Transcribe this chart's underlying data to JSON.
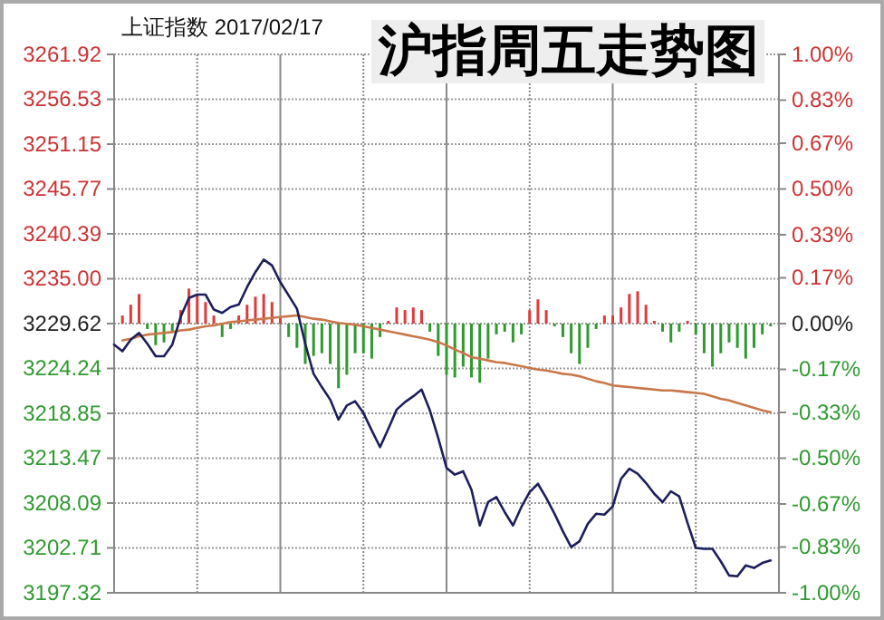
{
  "chart_data": {
    "type": "line",
    "title": "沪指周五走势图",
    "subtitle": "上证指数 2017/02/17",
    "categories": [
      null,
      null,
      null,
      null,
      null,
      null,
      null,
      null,
      null,
      null,
      null,
      null,
      null,
      null,
      null,
      null,
      null,
      null,
      null,
      null,
      null,
      null,
      null,
      null,
      null,
      null,
      null,
      null,
      null,
      null,
      null,
      null,
      null,
      null,
      null,
      null,
      null,
      null,
      null,
      null,
      null,
      null,
      null,
      null,
      null,
      null,
      null,
      null,
      null,
      null,
      null,
      null,
      null,
      null,
      null,
      null,
      null,
      null,
      null,
      null,
      null,
      null,
      null,
      null,
      null,
      null,
      null,
      null,
      null,
      null,
      null,
      null,
      null,
      null,
      null,
      null,
      null,
      null,
      null,
      null,
      null
    ],
    "ylim": [
      3197.32,
      3261.92
    ],
    "yticks": [
      3197.32,
      3202.71,
      3208.09,
      3213.47,
      3218.85,
      3224.24,
      3229.62,
      {
        "value": 3235,
        "label": "3235.00"
      },
      3240.39,
      3245.77,
      3251.15,
      3256.53,
      3261.92
    ],
    "y2lim": [
      -1,
      1
    ],
    "y2ticks": [
      {
        "value": -1,
        "label": "-1.00%"
      },
      {
        "value": -0.83,
        "label": "-0.83%"
      },
      {
        "value": -0.67,
        "label": "-0.67%"
      },
      {
        "value": -0.5,
        "label": "-0.50%"
      },
      {
        "value": -0.33,
        "label": "-0.33%"
      },
      {
        "value": -0.17,
        "label": "-0.17%"
      },
      {
        "value": 0,
        "label": "0.00%"
      },
      {
        "value": 0.17,
        "label": "0.17%"
      },
      {
        "value": 0.33,
        "label": "0.33%"
      },
      {
        "value": 0.5,
        "label": "0.50%"
      },
      {
        "value": 0.67,
        "label": "0.67%"
      },
      {
        "value": 0.83,
        "label": "0.83%"
      },
      {
        "value": 1,
        "label": "1.00%"
      }
    ],
    "grid": true,
    "series": [
      {
        "type": "bar",
        "axis": "y2",
        "values": [
          0,
          0.03,
          0.07,
          0.11,
          -0.02,
          -0.08,
          -0.07,
          -0.03,
          0.05,
          0.13,
          0.11,
          0.08,
          0.03,
          -0.05,
          -0.02,
          0.03,
          0.07,
          0.1,
          0.11,
          0.08,
          0.02,
          -0.05,
          -0.09,
          -0.15,
          -0.12,
          -0.11,
          -0.15,
          -0.24,
          -0.19,
          -0.11,
          -0.11,
          -0.13,
          -0.05,
          0.01,
          0.06,
          0.05,
          0.06,
          0.05,
          -0.03,
          -0.12,
          -0.19,
          -0.2,
          -0.16,
          -0.2,
          -0.22,
          -0.13,
          -0.04,
          -0.03,
          -0.07,
          -0.04,
          0.05,
          0.09,
          0.05,
          -0.01,
          -0.05,
          -0.11,
          -0.15,
          -0.09,
          -0.02,
          0.03,
          0.03,
          0.06,
          0.11,
          0.12,
          0.07,
          0.01,
          -0.03,
          -0.07,
          -0.03,
          0.01,
          -0.04,
          -0.11,
          -0.16,
          -0.11,
          -0.07,
          -0.09,
          -0.13,
          -0.09,
          -0.04,
          -0.01,
          null
        ],
        "colors": [
          "#e03a3a",
          "#e03a3a",
          "#e03a3a",
          "#e03a3a",
          "#2f9a2f",
          "#2f9a2f",
          "#2f9a2f",
          "#2f9a2f",
          "#e03a3a",
          "#e03a3a",
          "#e03a3a",
          "#e03a3a",
          "#e03a3a",
          "#2f9a2f",
          "#2f9a2f",
          "#e03a3a",
          "#e03a3a",
          "#e03a3a",
          "#e03a3a",
          "#e03a3a",
          "#e03a3a",
          "#2f9a2f",
          "#2f9a2f",
          "#2f9a2f",
          "#2f9a2f",
          "#2f9a2f",
          "#2f9a2f",
          "#2f9a2f",
          "#2f9a2f",
          "#2f9a2f",
          "#2f9a2f",
          "#2f9a2f",
          "#2f9a2f",
          "#e03a3a",
          "#e03a3a",
          "#e03a3a",
          "#e03a3a",
          "#e03a3a",
          "#2f9a2f",
          "#2f9a2f",
          "#2f9a2f",
          "#2f9a2f",
          "#2f9a2f",
          "#2f9a2f",
          "#2f9a2f",
          "#2f9a2f",
          "#2f9a2f",
          "#2f9a2f",
          "#2f9a2f",
          "#2f9a2f",
          "#e03a3a",
          "#e03a3a",
          "#e03a3a",
          "#2f9a2f",
          "#2f9a2f",
          "#2f9a2f",
          "#2f9a2f",
          "#2f9a2f",
          "#2f9a2f",
          "#e03a3a",
          "#e03a3a",
          "#e03a3a",
          "#e03a3a",
          "#e03a3a",
          "#e03a3a",
          "#e03a3a",
          "#2f9a2f",
          "#2f9a2f",
          "#2f9a2f",
          "#e03a3a",
          "#2f9a2f",
          "#2f9a2f",
          "#2f9a2f",
          "#2f9a2f",
          "#2f9a2f",
          "#2f9a2f",
          "#2f9a2f",
          "#2f9a2f",
          "#2f9a2f",
          "#2f9a2f",
          "#2f9a2f"
        ]
      },
      {
        "color": "#c8784a",
        "values": [
          null,
          3227.6,
          3227.8,
          3228.1,
          3228.3,
          3228.4,
          3228.5,
          3228.6,
          3228.8,
          3228.9,
          3229.1,
          3229.3,
          3229.4,
          3229.6,
          3229.8,
          3229.9,
          3230.0,
          3230.1,
          3230.2,
          3230.3,
          3230.4,
          3230.5,
          3230.6,
          3230.4,
          3230.2,
          3230.1,
          3229.9,
          3229.7,
          3229.6,
          3229.5,
          3229.3,
          3229.1,
          3228.9,
          3228.7,
          3228.5,
          3228.3,
          3228.1,
          3227.9,
          3227.7,
          3227.4,
          3227.0,
          3226.5,
          3226.1,
          3225.6,
          3225.4,
          3225.2,
          3225.0,
          3224.9,
          3224.7,
          3224.5,
          3224.3,
          3224.1,
          3224.0,
          3223.8,
          3223.6,
          3223.5,
          3223.3,
          3223.0,
          3222.7,
          3222.5,
          3222.2,
          3222.1,
          3222.0,
          3221.9,
          3221.8,
          3221.7,
          3221.6,
          3221.6,
          3221.5,
          3221.4,
          3221.3,
          3221.2,
          3220.9,
          3220.6,
          3220.4,
          3220.1,
          3219.8,
          3219.5,
          3219.2,
          3219.0,
          null
        ]
      },
      {
        "color": "#1c1f5c",
        "values": [
          3227.1,
          3226.3,
          3227.7,
          3228.5,
          3227.2,
          3225.7,
          3225.7,
          3227.1,
          3230.4,
          3232.7,
          3233.1,
          3233.1,
          3231.3,
          3230.9,
          3231.6,
          3231.9,
          3234.0,
          3235.8,
          3237.3,
          3236.6,
          3234.6,
          3233.0,
          3231.4,
          3227.2,
          3223.6,
          3222.0,
          3220.5,
          3218.1,
          3219.8,
          3220.3,
          3218.9,
          3216.8,
          3214.8,
          3217.0,
          3219.3,
          3220.2,
          3220.9,
          3221.7,
          3219.2,
          3215.9,
          3212.3,
          3211.5,
          3211.9,
          3209.7,
          3205.4,
          3208.2,
          3208.8,
          3207.0,
          3205.4,
          3207.6,
          3209.4,
          3210.4,
          3208.7,
          3206.8,
          3204.7,
          3202.8,
          3203.5,
          3205.6,
          3206.8,
          3206.7,
          3207.7,
          3211.0,
          3212.2,
          3211.6,
          3210.5,
          3209.2,
          3208.2,
          3209.5,
          3208.9,
          3205.7,
          3202.7,
          3202.6,
          3202.6,
          3201.1,
          3199.4,
          3199.3,
          3200.6,
          3200.3,
          3200.9,
          3201.2,
          null
        ]
      }
    ]
  }
}
